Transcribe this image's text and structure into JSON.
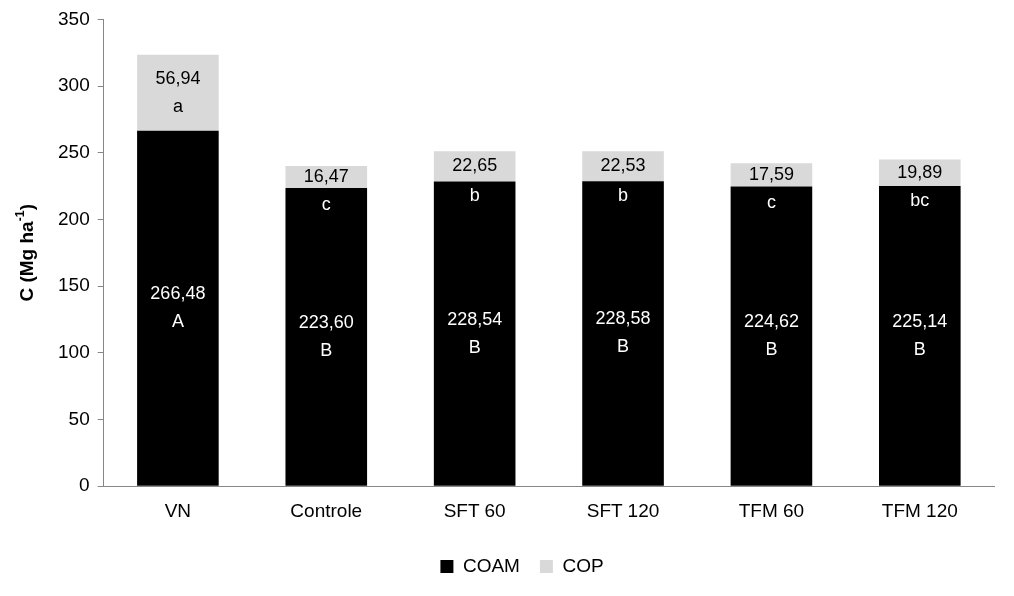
{
  "chart_data": {
    "type": "bar",
    "stacked": true,
    "ylabel": "C (Mg ha$^{-1}$)",
    "categories": [
      "VN",
      "Controle",
      "SFT 60",
      "SFT 120",
      "TFM 60",
      "TFM 120"
    ],
    "series": [
      {
        "name": "COAM",
        "color": "#000000",
        "values": [
          266.48,
          223.6,
          228.54,
          228.58,
          224.62,
          225.14
        ],
        "value_labels": [
          "266,48\nA",
          "223,60\nB",
          "228,54\nB",
          "228,58\nB",
          "224,62\nB",
          "225,14\nB"
        ]
      },
      {
        "name": "COP",
        "color": "#d9d9d9",
        "values": [
          56.94,
          16.47,
          22.65,
          22.53,
          17.59,
          19.89
        ],
        "value_labels": [
          "56,94\na",
          "16,47\nc",
          "22,65\nb",
          "22,53\nb",
          "17,59\nc",
          "19,89\nbc"
        ]
      }
    ],
    "ylim": [
      0,
      350
    ],
    "yticks": [
      0,
      50,
      100,
      150,
      200,
      250,
      300,
      350
    ],
    "grid": false,
    "legend": "bottom"
  }
}
